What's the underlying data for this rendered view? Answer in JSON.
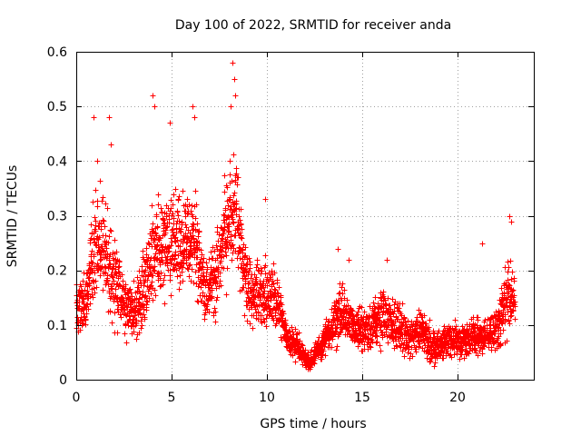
{
  "chart_data": {
    "type": "scatter",
    "title": "Day 100 of 2022, SRMTID for receiver anda",
    "xlabel": "GPS time / hours",
    "ylabel": "SRMTID / TECUs",
    "xlim": [
      0,
      24
    ],
    "ylim": [
      0,
      0.6
    ],
    "xticks": [
      0,
      5,
      10,
      15,
      20
    ],
    "xtick_labels": [
      "0",
      "5",
      "10",
      "15",
      "20"
    ],
    "yticks": [
      0,
      0.1,
      0.2,
      0.3,
      0.4,
      0.5,
      0.6
    ],
    "ytick_labels": [
      "0",
      "0.1",
      "0.2",
      "0.3",
      "0.4",
      "0.5",
      "0.6"
    ],
    "grid": true,
    "marker": "+",
    "color": "#ff0000",
    "series": [
      {
        "name": "SRMTID",
        "envelope": [
          {
            "t": 0.0,
            "base": 0.13,
            "spread": 0.06
          },
          {
            "t": 0.5,
            "base": 0.14,
            "spread": 0.06
          },
          {
            "t": 0.9,
            "base": 0.24,
            "spread": 0.12
          },
          {
            "t": 1.4,
            "base": 0.25,
            "spread": 0.12
          },
          {
            "t": 2.0,
            "base": 0.18,
            "spread": 0.1
          },
          {
            "t": 2.5,
            "base": 0.14,
            "spread": 0.07
          },
          {
            "t": 3.2,
            "base": 0.12,
            "spread": 0.07
          },
          {
            "t": 3.7,
            "base": 0.2,
            "spread": 0.1
          },
          {
            "t": 4.2,
            "base": 0.24,
            "spread": 0.12
          },
          {
            "t": 4.8,
            "base": 0.25,
            "spread": 0.12
          },
          {
            "t": 5.5,
            "base": 0.26,
            "spread": 0.12
          },
          {
            "t": 6.2,
            "base": 0.27,
            "spread": 0.12
          },
          {
            "t": 6.7,
            "base": 0.16,
            "spread": 0.08
          },
          {
            "t": 7.3,
            "base": 0.19,
            "spread": 0.09
          },
          {
            "t": 7.8,
            "base": 0.27,
            "spread": 0.12
          },
          {
            "t": 8.3,
            "base": 0.33,
            "spread": 0.14
          },
          {
            "t": 8.7,
            "base": 0.21,
            "spread": 0.1
          },
          {
            "t": 9.2,
            "base": 0.14,
            "spread": 0.08
          },
          {
            "t": 9.8,
            "base": 0.16,
            "spread": 0.08
          },
          {
            "t": 10.5,
            "base": 0.15,
            "spread": 0.07
          },
          {
            "t": 11.0,
            "base": 0.08,
            "spread": 0.04
          },
          {
            "t": 11.8,
            "base": 0.05,
            "spread": 0.03
          },
          {
            "t": 12.2,
            "base": 0.03,
            "spread": 0.02
          },
          {
            "t": 12.8,
            "base": 0.06,
            "spread": 0.03
          },
          {
            "t": 13.3,
            "base": 0.09,
            "spread": 0.04
          },
          {
            "t": 13.8,
            "base": 0.12,
            "spread": 0.07
          },
          {
            "t": 14.5,
            "base": 0.1,
            "spread": 0.05
          },
          {
            "t": 15.2,
            "base": 0.09,
            "spread": 0.05
          },
          {
            "t": 16.0,
            "base": 0.12,
            "spread": 0.07
          },
          {
            "t": 16.8,
            "base": 0.1,
            "spread": 0.05
          },
          {
            "t": 17.5,
            "base": 0.08,
            "spread": 0.05
          },
          {
            "t": 18.2,
            "base": 0.09,
            "spread": 0.05
          },
          {
            "t": 18.9,
            "base": 0.05,
            "spread": 0.04
          },
          {
            "t": 19.5,
            "base": 0.08,
            "spread": 0.04
          },
          {
            "t": 20.2,
            "base": 0.07,
            "spread": 0.04
          },
          {
            "t": 20.8,
            "base": 0.08,
            "spread": 0.04
          },
          {
            "t": 21.5,
            "base": 0.08,
            "spread": 0.04
          },
          {
            "t": 22.0,
            "base": 0.09,
            "spread": 0.05
          },
          {
            "t": 22.6,
            "base": 0.15,
            "spread": 0.09
          },
          {
            "t": 23.0,
            "base": 0.14,
            "spread": 0.06
          }
        ],
        "peaks": [
          {
            "x": 0.9,
            "y": 0.48
          },
          {
            "x": 1.1,
            "y": 0.4
          },
          {
            "x": 1.7,
            "y": 0.48
          },
          {
            "x": 1.8,
            "y": 0.43
          },
          {
            "x": 4.0,
            "y": 0.52
          },
          {
            "x": 4.1,
            "y": 0.5
          },
          {
            "x": 4.9,
            "y": 0.47
          },
          {
            "x": 6.1,
            "y": 0.5
          },
          {
            "x": 6.2,
            "y": 0.48
          },
          {
            "x": 8.2,
            "y": 0.58
          },
          {
            "x": 8.3,
            "y": 0.55
          },
          {
            "x": 8.35,
            "y": 0.52
          },
          {
            "x": 8.1,
            "y": 0.5
          },
          {
            "x": 9.9,
            "y": 0.33
          },
          {
            "x": 13.7,
            "y": 0.24
          },
          {
            "x": 14.3,
            "y": 0.22
          },
          {
            "x": 16.3,
            "y": 0.22
          },
          {
            "x": 21.3,
            "y": 0.25
          },
          {
            "x": 22.7,
            "y": 0.3
          },
          {
            "x": 22.8,
            "y": 0.29
          }
        ]
      }
    ]
  }
}
